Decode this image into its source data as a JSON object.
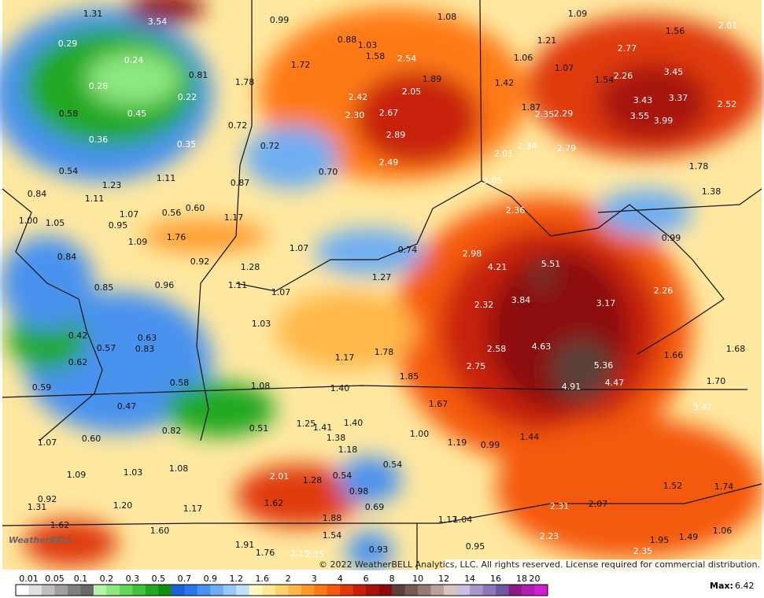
{
  "map": {
    "labels": [
      "1.31",
      "3.54",
      "0.99",
      "1.08",
      "1.09",
      "1.56",
      "2.01",
      "0.29",
      "0.88",
      "1.03",
      "1.58",
      "2.54",
      "1.21",
      "2.77",
      "0.24",
      "1.72",
      "1.06",
      "1.07",
      "1.89",
      "3.45",
      "0.81",
      "1.78",
      "1.42",
      "1.54",
      "2.26",
      "0.28",
      "0.22",
      "2.42",
      "2.05",
      "3.43",
      "3.37",
      "2.52",
      "0.58",
      "0.45",
      "2.30",
      "2.67",
      "1.87",
      "2.35",
      "2.29",
      "3.55",
      "3.99",
      "0.72",
      "0.36",
      "0.35",
      "0.72",
      "2.89",
      "2.34",
      "2.79",
      "0.54",
      "1.11",
      "0.70",
      "2.49",
      "2.01",
      "1.78",
      "0.84",
      "1.23",
      "0.87",
      "3.05",
      "1.38",
      "1.11",
      "0.56",
      "0.60",
      "2.36",
      "1.00",
      "1.05",
      "1.07",
      "0.95",
      "1.17",
      "0.99",
      "1.09",
      "1.76",
      "1.07",
      "0.74",
      "0.84",
      "0.92",
      "2.98",
      "4.21",
      "5.51",
      "1.28",
      "1.27",
      "1.11",
      "0.96",
      "0.85",
      "1.07",
      "3.84",
      "3.17",
      "2.26",
      "2.32",
      "1.03",
      "0.42",
      "0.63",
      "0.57",
      "0.83",
      "2.58",
      "4.63",
      "1.68",
      "1.17",
      "1.78",
      "0.62",
      "1.66",
      "5.36",
      "2.75",
      "1.85",
      "0.59",
      "0.58",
      "1.08",
      "1.40",
      "4.91",
      "4.47",
      "1.70",
      "0.47",
      "1.67",
      "3.47",
      "0.51",
      "0.82",
      "1.25",
      "1.41",
      "1.40",
      "1.00",
      "1.44",
      "1.07",
      "0.60",
      "1.38",
      "1.19",
      "0.99",
      "1.18",
      "1.09",
      "1.03",
      "1.08",
      "2.01",
      "1.28",
      "0.54",
      "0.54",
      "0.98",
      "1.52",
      "1.74",
      "0.92",
      "1.31",
      "1.20",
      "1.17",
      "1.62",
      "2.31",
      "2.07",
      "0.69",
      "1.88",
      "1.17",
      "1.04",
      "1.62",
      "1.60",
      "1.06",
      "1.54",
      "2.23",
      "1.95",
      "1.49",
      "1.91",
      "1.76",
      "2.15",
      "2.15",
      "0.93",
      "0.95",
      "2.35"
    ],
    "copyright": "© 2022 WeatherBELL Analytics, LLC. All rights reserved. License required for commercial distribution.",
    "logo": "WeatherBELL"
  },
  "legend": {
    "ticks": [
      "0.01",
      "0.05",
      "0.1",
      "0.2",
      "0.3",
      "0.5",
      "0.7",
      "0.9",
      "1.2",
      "1.6",
      "2",
      "3",
      "4",
      "6",
      "8",
      "10",
      "12",
      "14",
      "16",
      "18",
      "20"
    ],
    "colors": [
      "#ffffff",
      "#e0e0e0",
      "#c0c0c0",
      "#a0a0a0",
      "#808080",
      "#686868",
      "#b4f5a8",
      "#8ce87f",
      "#64d65a",
      "#40c23a",
      "#22a822",
      "#138c13",
      "#1c5fd8",
      "#2a78e8",
      "#4a92ee",
      "#70aef2",
      "#98c8f6",
      "#c2e0fa",
      "#fff7c0",
      "#ffe898",
      "#ffd270",
      "#ffb84a",
      "#ff9a2a",
      "#ff7a18",
      "#f45a10",
      "#e03a0c",
      "#c8200a",
      "#a8120a",
      "#8c0a0a",
      "#5a4038",
      "#7a5a50",
      "#9a7a72",
      "#bca29c",
      "#d8c4c0",
      "#c8c0e0",
      "#a898cc",
      "#8c78b8",
      "#6e58a0",
      "#8a1a8a",
      "#b01cb0",
      "#d020d0"
    ],
    "max_label": "Max:",
    "max_value": 6.42
  }
}
